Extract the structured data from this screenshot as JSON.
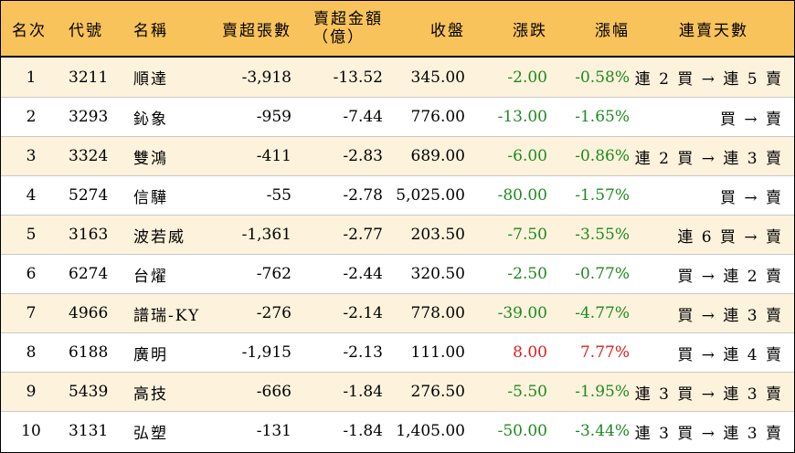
{
  "colors": {
    "header_bg": "#f9c35c",
    "stripe_bg": "#fdf2dc",
    "down": "#1e8a1e",
    "up": "#e01c1c"
  },
  "headers": {
    "rank": "名次",
    "code": "代號",
    "name": "名稱",
    "shares": "賣超張數",
    "amount_line1": "賣超金額",
    "amount_line2": "（億）",
    "close": "收盤",
    "change": "漲跌",
    "pct": "漲幅",
    "streak": "連賣天數"
  },
  "rows": [
    {
      "rank": "1",
      "code": "3211",
      "name": "順達",
      "shares": "-3,918",
      "amount": "-13.52",
      "close": "345.00",
      "change": "-2.00",
      "pct": "-0.58%",
      "direction": "down",
      "streak": "連 2 買 → 連 5 賣"
    },
    {
      "rank": "2",
      "code": "3293",
      "name": "鈊象",
      "shares": "-959",
      "amount": "-7.44",
      "close": "776.00",
      "change": "-13.00",
      "pct": "-1.65%",
      "direction": "down",
      "streak": "買 → 賣"
    },
    {
      "rank": "3",
      "code": "3324",
      "name": "雙鴻",
      "shares": "-411",
      "amount": "-2.83",
      "close": "689.00",
      "change": "-6.00",
      "pct": "-0.86%",
      "direction": "down",
      "streak": "連 2 買 → 連 3 賣"
    },
    {
      "rank": "4",
      "code": "5274",
      "name": "信驊",
      "shares": "-55",
      "amount": "-2.78",
      "close": "5,025.00",
      "change": "-80.00",
      "pct": "-1.57%",
      "direction": "down",
      "streak": "買 → 賣"
    },
    {
      "rank": "5",
      "code": "3163",
      "name": "波若威",
      "shares": "-1,361",
      "amount": "-2.77",
      "close": "203.50",
      "change": "-7.50",
      "pct": "-3.55%",
      "direction": "down",
      "streak": "連 6 買 → 賣"
    },
    {
      "rank": "6",
      "code": "6274",
      "name": "台燿",
      "shares": "-762",
      "amount": "-2.44",
      "close": "320.50",
      "change": "-2.50",
      "pct": "-0.77%",
      "direction": "down",
      "streak": "買 → 連 2 賣"
    },
    {
      "rank": "7",
      "code": "4966",
      "name": "譜瑞-KY",
      "shares": "-276",
      "amount": "-2.14",
      "close": "778.00",
      "change": "-39.00",
      "pct": "-4.77%",
      "direction": "down",
      "streak": "買 → 連 3 賣"
    },
    {
      "rank": "8",
      "code": "6188",
      "name": "廣明",
      "shares": "-1,915",
      "amount": "-2.13",
      "close": "111.00",
      "change": "8.00",
      "pct": "7.77%",
      "direction": "up",
      "streak": "買 → 連 4 賣"
    },
    {
      "rank": "9",
      "code": "5439",
      "name": "高技",
      "shares": "-666",
      "amount": "-1.84",
      "close": "276.50",
      "change": "-5.50",
      "pct": "-1.95%",
      "direction": "down",
      "streak": "連 3 買 → 連 3 賣"
    },
    {
      "rank": "10",
      "code": "3131",
      "name": "弘塑",
      "shares": "-131",
      "amount": "-1.84",
      "close": "1,405.00",
      "change": "-50.00",
      "pct": "-3.44%",
      "direction": "down",
      "streak": "連 3 買 → 連 3 賣"
    }
  ]
}
